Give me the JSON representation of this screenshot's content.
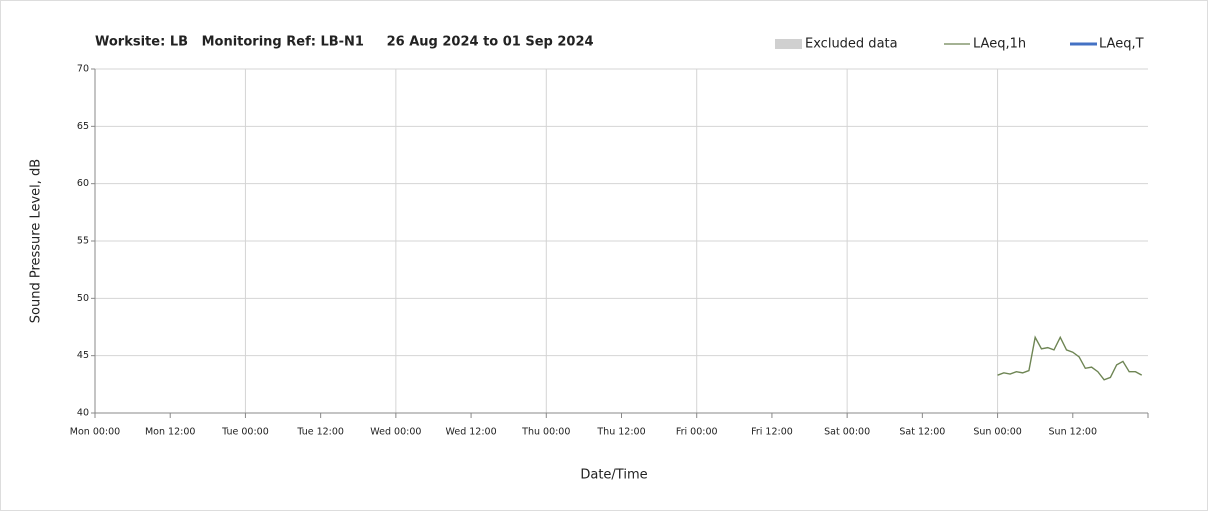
{
  "chart_data": {
    "type": "line",
    "title": "Worksite: LB   Monitoring Ref: LB-N1     26 Aug 2024 to 01 Sep 2024",
    "y_label": "Sound Pressure Level, dB",
    "x_label": "Date/Time",
    "x": [
      144,
      145,
      146,
      147,
      148,
      149,
      150,
      151,
      152,
      153,
      154,
      155,
      156,
      157,
      158,
      159,
      160,
      161,
      162,
      163,
      164,
      165,
      166,
      167
    ],
    "series": [
      {
        "name": "LAeq,1h",
        "color": "#6e8554",
        "values": [
          43.3,
          43.5,
          43.4,
          43.6,
          43.5,
          43.7,
          46.6,
          45.6,
          45.7,
          45.5,
          46.6,
          45.5,
          45.3,
          44.9,
          43.9,
          44.0,
          43.6,
          42.9,
          43.1,
          44.2,
          44.5,
          43.6,
          43.6,
          43.3
        ]
      }
    ],
    "legend_items": [
      {
        "name": "Excluded data",
        "color": "#d0d0d0"
      },
      {
        "name": "LAeq,T",
        "color": "#4472c4"
      }
    ],
    "xlim": [
      0,
      168
    ],
    "xticks": [
      {
        "value": 0,
        "label": "Mon 00:00"
      },
      {
        "value": 12,
        "label": "Mon 12:00"
      },
      {
        "value": 24,
        "label": "Tue 00:00"
      },
      {
        "value": 36,
        "label": "Tue 12:00"
      },
      {
        "value": 48,
        "label": "Wed 00:00"
      },
      {
        "value": 60,
        "label": "Wed 12:00"
      },
      {
        "value": 72,
        "label": "Thu 00:00"
      },
      {
        "value": 84,
        "label": "Thu 12:00"
      },
      {
        "value": 96,
        "label": "Fri 00:00"
      },
      {
        "value": 108,
        "label": "Fri 12:00"
      },
      {
        "value": 120,
        "label": "Sat 00:00"
      },
      {
        "value": 132,
        "label": "Sat 12:00"
      },
      {
        "value": 144,
        "label": "Sun 00:00"
      },
      {
        "value": 156,
        "label": "Sun 12:00"
      }
    ],
    "ylim": [
      40,
      70
    ],
    "yticks": [
      40,
      45,
      50,
      55,
      60,
      65,
      70
    ],
    "grid": true
  }
}
